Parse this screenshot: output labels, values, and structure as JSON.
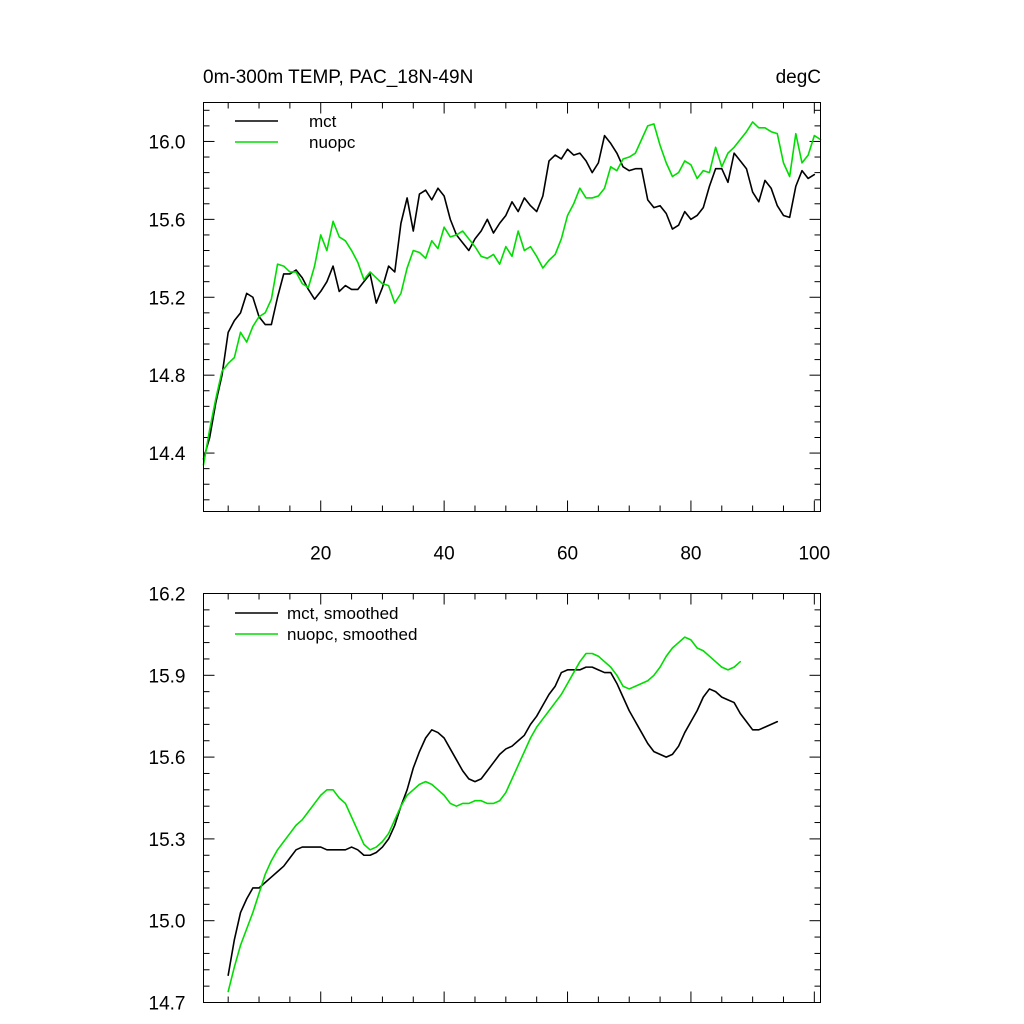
{
  "chart_data": [
    {
      "type": "line",
      "title": "0m-300m TEMP, PAC_18N-49N",
      "units_label": "degC",
      "xlabel": "",
      "ylabel": "",
      "xlim": [
        1,
        101
      ],
      "ylim": [
        14.1,
        16.2
      ],
      "x_ticks": [
        20,
        40,
        60,
        80,
        100
      ],
      "x_tick_labels": [
        "20",
        "40",
        "60",
        "80",
        "100"
      ],
      "y_ticks": [
        14.4,
        14.8,
        15.2,
        15.6,
        16.0
      ],
      "y_tick_labels": [
        "14.4",
        "14.8",
        "15.2",
        "15.6",
        "16.0"
      ],
      "legend_position": "top-left",
      "series": [
        {
          "name": "mct",
          "color": "#000000",
          "x_start": 1,
          "values": [
            14.37,
            14.48,
            14.66,
            14.8,
            15.02,
            15.08,
            15.12,
            15.22,
            15.2,
            15.1,
            15.06,
            15.06,
            15.2,
            15.32,
            15.32,
            15.34,
            15.3,
            15.24,
            15.19,
            15.23,
            15.28,
            15.36,
            15.23,
            15.26,
            15.24,
            15.24,
            15.28,
            15.32,
            15.17,
            15.25,
            15.36,
            15.33,
            15.58,
            15.71,
            15.54,
            15.73,
            15.75,
            15.7,
            15.76,
            15.72,
            15.6,
            15.52,
            15.48,
            15.44,
            15.5,
            15.54,
            15.6,
            15.53,
            15.58,
            15.62,
            15.69,
            15.64,
            15.71,
            15.67,
            15.64,
            15.72,
            15.9,
            15.93,
            15.91,
            15.96,
            15.93,
            15.94,
            15.9,
            15.84,
            15.89,
            16.03,
            15.99,
            15.94,
            15.87,
            15.85,
            15.86,
            15.86,
            15.7,
            15.66,
            15.67,
            15.63,
            15.55,
            15.57,
            15.64,
            15.6,
            15.62,
            15.66,
            15.77,
            15.86,
            15.86,
            15.79,
            15.94,
            15.9,
            15.86,
            15.74,
            15.69,
            15.8,
            15.76,
            15.67,
            15.62,
            15.61,
            15.77,
            15.85,
            15.81,
            15.83
          ]
        },
        {
          "name": "nuopc",
          "color": "#00dd00",
          "x_start": 1,
          "values": [
            14.34,
            14.52,
            14.68,
            14.82,
            14.86,
            14.89,
            15.02,
            14.97,
            15.05,
            15.1,
            15.12,
            15.19,
            15.37,
            15.36,
            15.33,
            15.33,
            15.27,
            15.25,
            15.36,
            15.52,
            15.44,
            15.59,
            15.51,
            15.49,
            15.44,
            15.38,
            15.29,
            15.33,
            15.3,
            15.27,
            15.26,
            15.17,
            15.22,
            15.35,
            15.44,
            15.43,
            15.4,
            15.49,
            15.45,
            15.56,
            15.51,
            15.52,
            15.54,
            15.5,
            15.46,
            15.41,
            15.4,
            15.42,
            15.37,
            15.46,
            15.41,
            15.54,
            15.44,
            15.46,
            15.41,
            15.35,
            15.39,
            15.42,
            15.5,
            15.62,
            15.68,
            15.76,
            15.71,
            15.71,
            15.72,
            15.76,
            15.87,
            15.85,
            15.91,
            15.92,
            15.94,
            16.01,
            16.08,
            16.09,
            15.98,
            15.89,
            15.82,
            15.84,
            15.9,
            15.88,
            15.81,
            15.85,
            15.84,
            15.97,
            15.87,
            15.94,
            15.97,
            16.01,
            16.05,
            16.1,
            16.07,
            16.07,
            16.05,
            16.04,
            15.89,
            15.82,
            16.04,
            15.89,
            15.93,
            16.03,
            16.01
          ]
        }
      ]
    },
    {
      "type": "line",
      "title": "",
      "xlabel": "",
      "ylabel": "",
      "xlim": [
        1,
        101
      ],
      "ylim": [
        14.7,
        16.2
      ],
      "x_ticks": [
        20,
        40,
        60,
        80,
        100
      ],
      "x_tick_labels": [],
      "y_ticks": [
        14.7,
        15.0,
        15.3,
        15.6,
        15.9,
        16.2
      ],
      "y_tick_labels": [
        "14.7",
        "15.0",
        "15.3",
        "15.6",
        "15.9",
        "16.2"
      ],
      "legend_position": "top-left",
      "series": [
        {
          "name": "mct, smoothed",
          "color": "#000000",
          "x_start": 5,
          "values": [
            14.8,
            14.93,
            15.03,
            15.08,
            15.12,
            15.12,
            15.14,
            15.16,
            15.18,
            15.2,
            15.23,
            15.26,
            15.27,
            15.27,
            15.27,
            15.27,
            15.26,
            15.26,
            15.26,
            15.26,
            15.27,
            15.26,
            15.24,
            15.24,
            15.25,
            15.27,
            15.3,
            15.35,
            15.42,
            15.48,
            15.56,
            15.62,
            15.67,
            15.7,
            15.69,
            15.67,
            15.63,
            15.59,
            15.55,
            15.52,
            15.51,
            15.52,
            15.55,
            15.58,
            15.61,
            15.63,
            15.64,
            15.66,
            15.68,
            15.72,
            15.75,
            15.79,
            15.83,
            15.86,
            15.91,
            15.92,
            15.92,
            15.92,
            15.93,
            15.93,
            15.92,
            15.91,
            15.91,
            15.87,
            15.82,
            15.77,
            15.73,
            15.69,
            15.65,
            15.62,
            15.61,
            15.6,
            15.61,
            15.64,
            15.69,
            15.73,
            15.77,
            15.82,
            15.85,
            15.84,
            15.82,
            15.81,
            15.8,
            15.76,
            15.73,
            15.7,
            15.7,
            15.71,
            15.72,
            15.73
          ]
        },
        {
          "name": "nuopc, smoothed",
          "color": "#00dd00",
          "x_start": 5,
          "values": [
            14.74,
            14.83,
            14.91,
            14.97,
            15.03,
            15.1,
            15.17,
            15.22,
            15.26,
            15.29,
            15.32,
            15.35,
            15.37,
            15.4,
            15.43,
            15.46,
            15.48,
            15.48,
            15.45,
            15.43,
            15.38,
            15.33,
            15.28,
            15.26,
            15.27,
            15.29,
            15.32,
            15.37,
            15.42,
            15.46,
            15.48,
            15.5,
            15.51,
            15.5,
            15.48,
            15.46,
            15.43,
            15.42,
            15.43,
            15.43,
            15.44,
            15.44,
            15.43,
            15.43,
            15.44,
            15.47,
            15.52,
            15.57,
            15.62,
            15.67,
            15.71,
            15.74,
            15.77,
            15.8,
            15.83,
            15.87,
            15.91,
            15.95,
            15.98,
            15.98,
            15.97,
            15.95,
            15.93,
            15.9,
            15.86,
            15.85,
            15.86,
            15.87,
            15.88,
            15.9,
            15.93,
            15.97,
            16.0,
            16.02,
            16.04,
            16.03,
            16.0,
            15.99,
            15.97,
            15.95,
            15.93,
            15.92,
            15.93,
            15.95
          ]
        }
      ]
    }
  ]
}
